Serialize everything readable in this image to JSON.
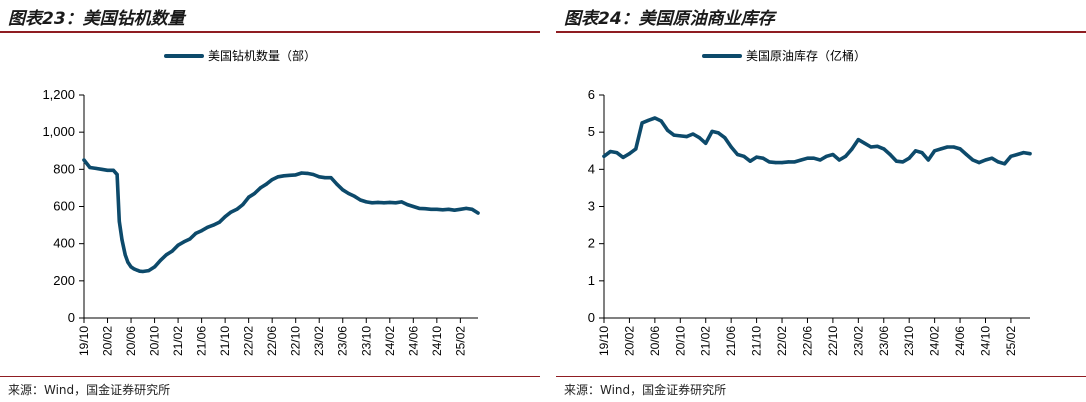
{
  "chart_data": [
    {
      "type": "line",
      "title": "图表23：美国钻机数量",
      "source": "来源：Wind，国金证券研究所",
      "legend": [
        "美国钻机数量（部）"
      ],
      "legend_position": "top-center",
      "color": "#0d4a6b",
      "ylim": [
        0,
        1200
      ],
      "yticks": [
        "0",
        "200",
        "400",
        "600",
        "800",
        "1,000",
        "1,200"
      ],
      "ytick_values": [
        0,
        200,
        400,
        600,
        800,
        1000,
        1200
      ],
      "xticks": [
        "19/10",
        "20/02",
        "20/06",
        "20/10",
        "21/02",
        "21/06",
        "21/10",
        "22/02",
        "22/06",
        "22/10",
        "23/02",
        "23/06",
        "23/10",
        "24/02",
        "24/06",
        "24/10",
        "25/02"
      ],
      "grid": false,
      "series": [
        {
          "name": "美国钻机数量（部）",
          "x": [
            "2019-10",
            "2019-11",
            "2019-12",
            "2020-01",
            "2020-02",
            "2020-03",
            "2020-03-20",
            "2020-04",
            "2020-04-15",
            "2020-05",
            "2020-05-15",
            "2020-06",
            "2020-06-15",
            "2020-07",
            "2020-07-15",
            "2020-08",
            "2020-09",
            "2020-10",
            "2020-11",
            "2020-12",
            "2021-01",
            "2021-02",
            "2021-03",
            "2021-04",
            "2021-05",
            "2021-06",
            "2021-07",
            "2021-08",
            "2021-09",
            "2021-10",
            "2021-11",
            "2021-12",
            "2022-01",
            "2022-02",
            "2022-03",
            "2022-04",
            "2022-05",
            "2022-06",
            "2022-07",
            "2022-08",
            "2022-09",
            "2022-10",
            "2022-11",
            "2022-12",
            "2023-01",
            "2023-02",
            "2023-03",
            "2023-04",
            "2023-05",
            "2023-06",
            "2023-07",
            "2023-08",
            "2023-09",
            "2023-10",
            "2023-11",
            "2023-12",
            "2024-01",
            "2024-02",
            "2024-03",
            "2024-04",
            "2024-05",
            "2024-06",
            "2024-07",
            "2024-08",
            "2024-09",
            "2024-10",
            "2024-11",
            "2024-12",
            "2025-01",
            "2025-02",
            "2025-03",
            "2025-04",
            "2025-05"
          ],
          "values": [
            850,
            810,
            805,
            800,
            795,
            795,
            772,
            520,
            420,
            340,
            300,
            275,
            265,
            258,
            252,
            250,
            255,
            275,
            310,
            340,
            360,
            392,
            410,
            425,
            455,
            470,
            488,
            500,
            515,
            545,
            570,
            585,
            610,
            650,
            670,
            700,
            720,
            745,
            760,
            765,
            768,
            770,
            780,
            778,
            772,
            760,
            755,
            755,
            720,
            690,
            670,
            655,
            635,
            625,
            620,
            622,
            620,
            622,
            620,
            625,
            610,
            600,
            590,
            588,
            585,
            585,
            582,
            585,
            580,
            585,
            590,
            585,
            565
          ]
        }
      ]
    },
    {
      "type": "line",
      "title": "图表24：美国原油商业库存",
      "source": "来源：Wind，国金证券研究所",
      "legend": [
        "美国原油库存（亿桶）"
      ],
      "legend_position": "top-center",
      "color": "#0d4a6b",
      "ylim": [
        0,
        6
      ],
      "yticks": [
        "0",
        "1",
        "2",
        "3",
        "4",
        "5",
        "6"
      ],
      "ytick_values": [
        0,
        1,
        2,
        3,
        4,
        5,
        6
      ],
      "xticks": [
        "19/10",
        "20/02",
        "20/06",
        "20/10",
        "21/02",
        "21/06",
        "21/10",
        "22/02",
        "22/06",
        "22/10",
        "23/02",
        "23/06",
        "23/10",
        "24/02",
        "24/06",
        "24/10",
        "25/02"
      ],
      "grid": false,
      "series": [
        {
          "name": "美国原油库存（亿桶）",
          "x": [
            "2019-10",
            "2019-11",
            "2019-12",
            "2020-01",
            "2020-02",
            "2020-03",
            "2020-04",
            "2020-05",
            "2020-06",
            "2020-07",
            "2020-08",
            "2020-09",
            "2020-10",
            "2020-11",
            "2020-12",
            "2021-01",
            "2021-02",
            "2021-03",
            "2021-04",
            "2021-05",
            "2021-06",
            "2021-07",
            "2021-08",
            "2021-09",
            "2021-10",
            "2021-11",
            "2021-12",
            "2022-01",
            "2022-02",
            "2022-03",
            "2022-04",
            "2022-05",
            "2022-06",
            "2022-07",
            "2022-08",
            "2022-09",
            "2022-10",
            "2022-11",
            "2022-12",
            "2023-01",
            "2023-02",
            "2023-03",
            "2023-04",
            "2023-05",
            "2023-06",
            "2023-07",
            "2023-08",
            "2023-09",
            "2023-10",
            "2023-11",
            "2023-12",
            "2024-01",
            "2024-02",
            "2024-03",
            "2024-04",
            "2024-05",
            "2024-06",
            "2024-07",
            "2024-08",
            "2024-09",
            "2024-10",
            "2024-11",
            "2024-12",
            "2025-01",
            "2025-02",
            "2025-03",
            "2025-04",
            "2025-05"
          ],
          "values": [
            4.35,
            4.48,
            4.45,
            4.32,
            4.42,
            4.55,
            5.25,
            5.32,
            5.38,
            5.3,
            5.05,
            4.92,
            4.9,
            4.88,
            4.95,
            4.85,
            4.7,
            5.02,
            4.98,
            4.85,
            4.6,
            4.4,
            4.35,
            4.22,
            4.33,
            4.3,
            4.2,
            4.18,
            4.18,
            4.2,
            4.2,
            4.25,
            4.3,
            4.3,
            4.25,
            4.35,
            4.4,
            4.25,
            4.35,
            4.55,
            4.8,
            4.7,
            4.6,
            4.62,
            4.55,
            4.4,
            4.22,
            4.2,
            4.3,
            4.5,
            4.45,
            4.25,
            4.5,
            4.55,
            4.6,
            4.6,
            4.55,
            4.4,
            4.25,
            4.18,
            4.25,
            4.3,
            4.2,
            4.15,
            4.35,
            4.4,
            4.45,
            4.42
          ]
        }
      ]
    }
  ]
}
